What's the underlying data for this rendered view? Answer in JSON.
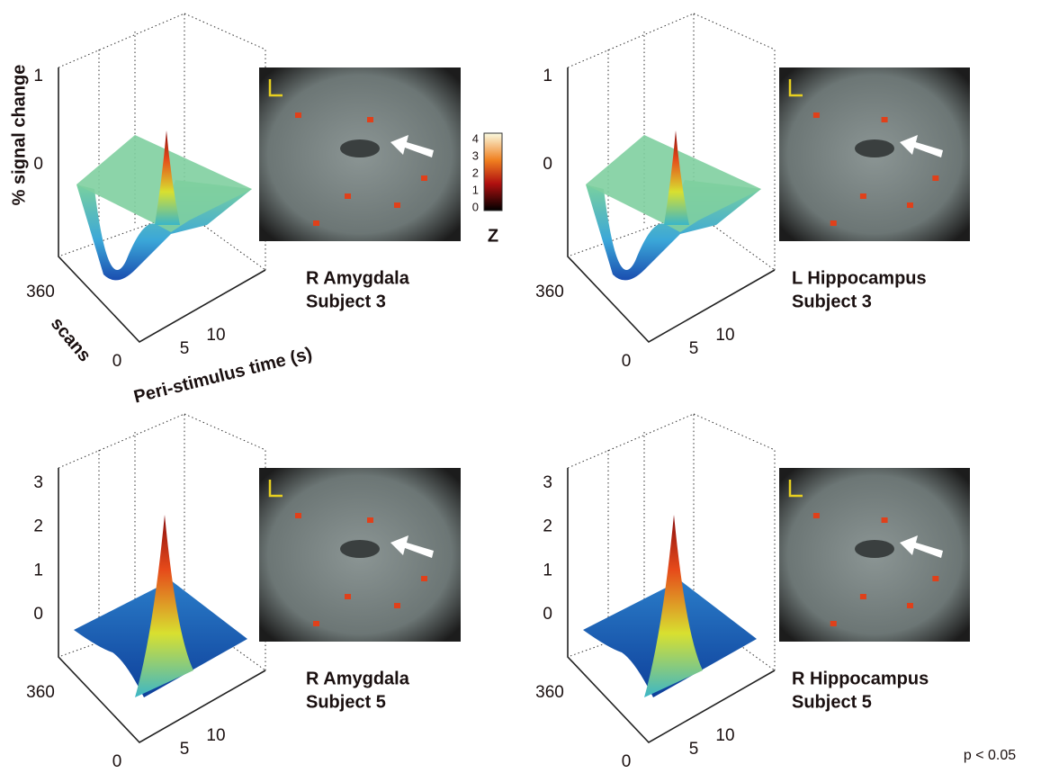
{
  "axis_labels": {
    "z": "% signal change",
    "scans": "scans",
    "time": "Peri-stimulus time (s)"
  },
  "colorbar": {
    "ticks": [
      "4",
      "3",
      "2",
      "1",
      "0"
    ],
    "label": "Z"
  },
  "threshold": "p < 0.05",
  "panels": [
    {
      "region": "R Amygdala",
      "subject": "Subject 3",
      "z_ticks": [
        "1",
        "0"
      ],
      "scan_ticks": [
        "360",
        "0"
      ],
      "time_ticks": [
        "5",
        "10"
      ]
    },
    {
      "region": "L Hippocampus",
      "subject": "Subject 3",
      "z_ticks": [
        "1",
        "0"
      ],
      "scan_ticks": [
        "360",
        "0"
      ],
      "time_ticks": [
        "5",
        "10"
      ]
    },
    {
      "region": "R Amygdala",
      "subject": "Subject 5",
      "z_ticks": [
        "3",
        "2",
        "1",
        "0"
      ],
      "scan_ticks": [
        "360",
        "0"
      ],
      "time_ticks": [
        "5",
        "10"
      ]
    },
    {
      "region": "R Hippocampus",
      "subject": "Subject 5",
      "z_ticks": [
        "3",
        "2",
        "1",
        "0"
      ],
      "scan_ticks": [
        "360",
        "0"
      ],
      "time_ticks": [
        "5",
        "10"
      ]
    }
  ]
}
